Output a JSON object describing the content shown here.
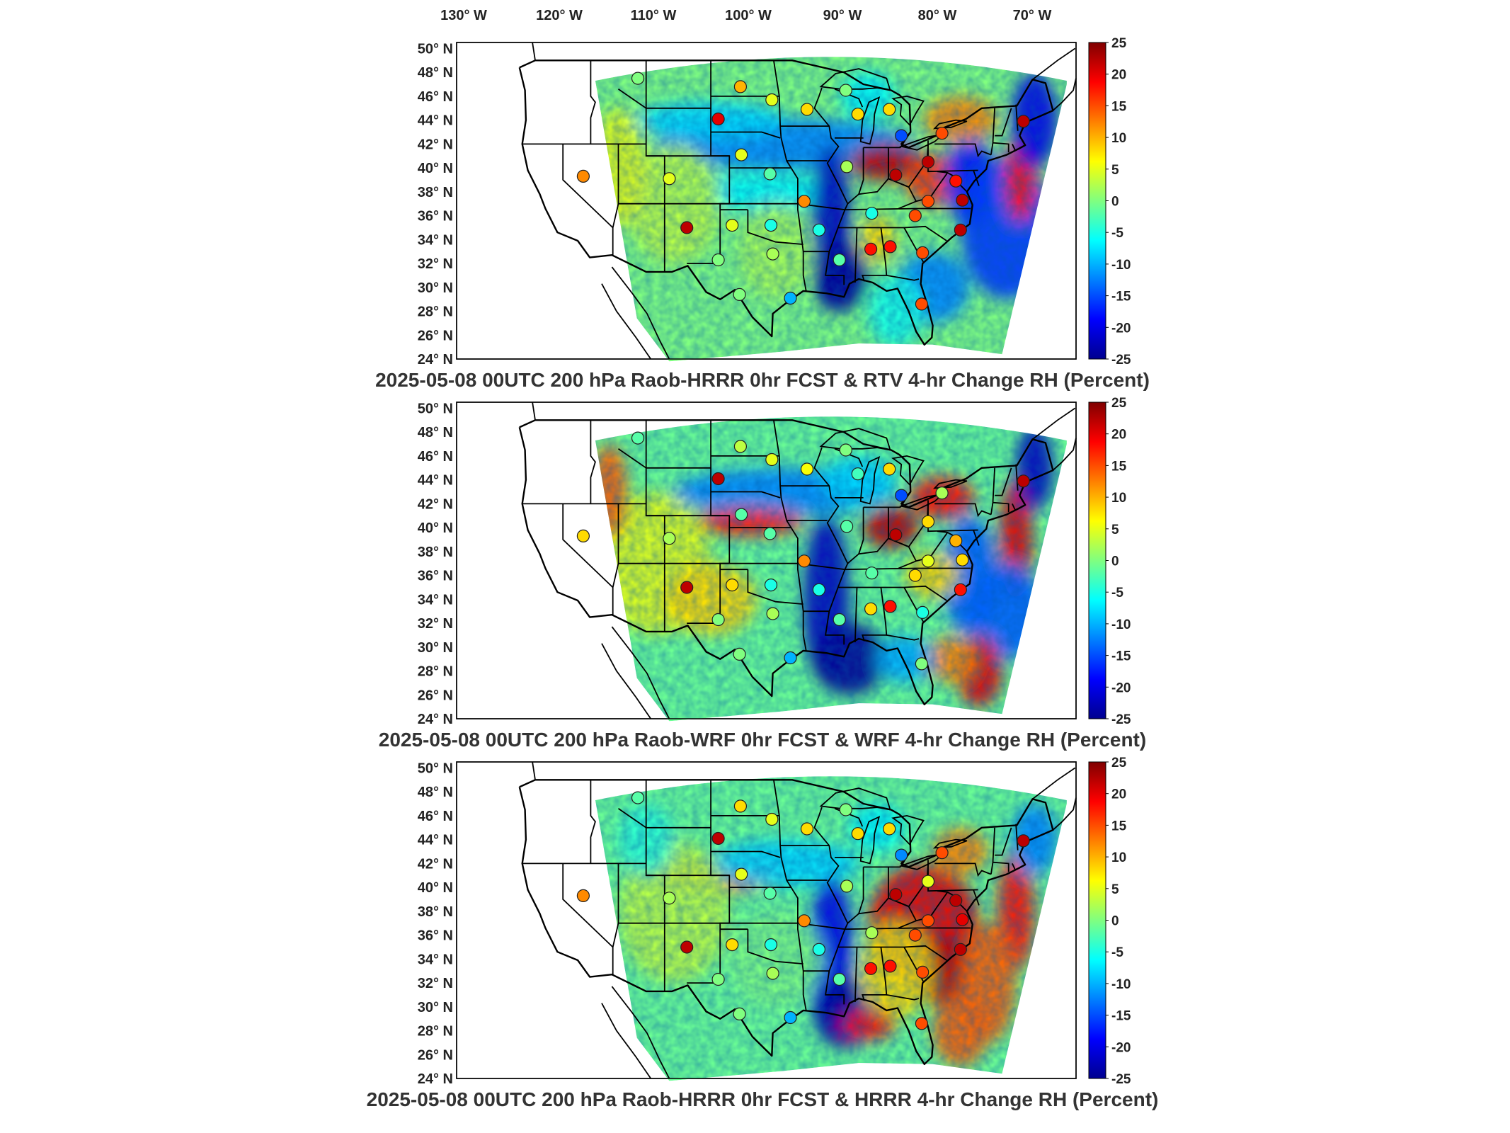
{
  "lon_labels": [
    "130° W",
    "120° W",
    "110° W",
    "100° W",
    "90° W",
    "80° W",
    "70° W"
  ],
  "lat_labels": [
    "50° N",
    "48° N",
    "46° N",
    "44° N",
    "42° N",
    "40° N",
    "38° N",
    "36° N",
    "34° N",
    "32° N",
    "30° N",
    "28° N",
    "26° N",
    "24° N"
  ],
  "colorbar": {
    "ticks": [
      "25",
      "20",
      "15",
      "10",
      "5",
      "0",
      "-5",
      "-10",
      "-15",
      "-20",
      "-25"
    ],
    "range": [
      -25,
      25
    ],
    "colormap": "jet"
  },
  "panels": [
    {
      "title": "2025-05-08 00UTC 200 hPa Raob-HRRR 0hr FCST & RTV 4-hr Change RH (Percent)"
    },
    {
      "title": "2025-05-08 00UTC 200 hPa Raob-WRF 0hr FCST & WRF 4-hr Change RH (Percent)"
    },
    {
      "title": "2025-05-08 00UTC 200 hPa Raob-HRRR 0hr FCST & HRRR 4-hr Change RH (Percent)"
    }
  ],
  "stations": [
    {
      "lon": -111.9,
      "lat": 47.5,
      "v": [
        0,
        -2,
        -2
      ]
    },
    {
      "lon": -100.8,
      "lat": 46.8,
      "v": [
        10,
        3,
        8
      ]
    },
    {
      "lon": -97.4,
      "lat": 45.7,
      "v": [
        5,
        5,
        5
      ]
    },
    {
      "lon": -89.4,
      "lat": 46.5,
      "v": [
        0,
        0,
        0
      ]
    },
    {
      "lon": -103.2,
      "lat": 44.1,
      "v": [
        20,
        22,
        22
      ]
    },
    {
      "lon": -93.6,
      "lat": 44.9,
      "v": [
        8,
        6,
        8
      ]
    },
    {
      "lon": -88.1,
      "lat": 44.5,
      "v": [
        8,
        -3,
        8
      ]
    },
    {
      "lon": -84.7,
      "lat": 44.9,
      "v": [
        8,
        8,
        8
      ]
    },
    {
      "lon": -83.4,
      "lat": 42.7,
      "v": [
        -15,
        -15,
        -12
      ]
    },
    {
      "lon": -79.0,
      "lat": 42.9,
      "v": [
        15,
        2,
        15
      ]
    },
    {
      "lon": -70.2,
      "lat": 43.9,
      "v": [
        22,
        22,
        22
      ]
    },
    {
      "lon": -117.8,
      "lat": 39.3,
      "v": [
        12,
        8,
        12
      ]
    },
    {
      "lon": -108.5,
      "lat": 39.1,
      "v": [
        5,
        2,
        2
      ]
    },
    {
      "lon": -100.7,
      "lat": 41.1,
      "v": [
        5,
        -2,
        5
      ]
    },
    {
      "lon": -97.6,
      "lat": 39.5,
      "v": [
        -2,
        -2,
        -2
      ]
    },
    {
      "lon": -93.9,
      "lat": 37.2,
      "v": [
        12,
        12,
        12
      ]
    },
    {
      "lon": -89.3,
      "lat": 40.1,
      "v": [
        2,
        -2,
        2
      ]
    },
    {
      "lon": -84.0,
      "lat": 39.4,
      "v": [
        22,
        22,
        22
      ]
    },
    {
      "lon": -80.5,
      "lat": 40.5,
      "v": [
        22,
        8,
        5
      ]
    },
    {
      "lon": -77.5,
      "lat": 38.9,
      "v": [
        18,
        10,
        22
      ]
    },
    {
      "lon": -76.8,
      "lat": 37.3,
      "v": [
        22,
        8,
        20
      ]
    },
    {
      "lon": -80.5,
      "lat": 37.2,
      "v": [
        15,
        5,
        15
      ]
    },
    {
      "lon": -81.9,
      "lat": 36.0,
      "v": [
        15,
        8,
        15
      ]
    },
    {
      "lon": -86.6,
      "lat": 36.2,
      "v": [
        -5,
        -2,
        2
      ]
    },
    {
      "lon": -77.0,
      "lat": 34.8,
      "v": [
        22,
        18,
        22
      ]
    },
    {
      "lon": -81.1,
      "lat": 32.9,
      "v": [
        15,
        -5,
        15
      ]
    },
    {
      "lon": -86.7,
      "lat": 33.2,
      "v": [
        18,
        8,
        18
      ]
    },
    {
      "lon": -84.6,
      "lat": 33.4,
      "v": [
        18,
        18,
        18
      ]
    },
    {
      "lon": -90.1,
      "lat": 32.3,
      "v": [
        -2,
        -2,
        -2
      ]
    },
    {
      "lon": -92.3,
      "lat": 34.8,
      "v": [
        -5,
        -5,
        -5
      ]
    },
    {
      "lon": -97.5,
      "lat": 35.2,
      "v": [
        -5,
        -5,
        -5
      ]
    },
    {
      "lon": -101.7,
      "lat": 35.2,
      "v": [
        5,
        8,
        8
      ]
    },
    {
      "lon": -106.6,
      "lat": 35.0,
      "v": [
        22,
        22,
        22
      ]
    },
    {
      "lon": -103.2,
      "lat": 32.3,
      "v": [
        0,
        0,
        0
      ]
    },
    {
      "lon": -97.3,
      "lat": 32.8,
      "v": [
        2,
        2,
        2
      ]
    },
    {
      "lon": -100.9,
      "lat": 29.4,
      "v": [
        0,
        0,
        0
      ]
    },
    {
      "lon": -95.4,
      "lat": 29.1,
      "v": [
        -10,
        -10,
        -10
      ]
    },
    {
      "lon": -81.2,
      "lat": 28.6,
      "v": [
        15,
        0,
        15
      ]
    }
  ]
}
